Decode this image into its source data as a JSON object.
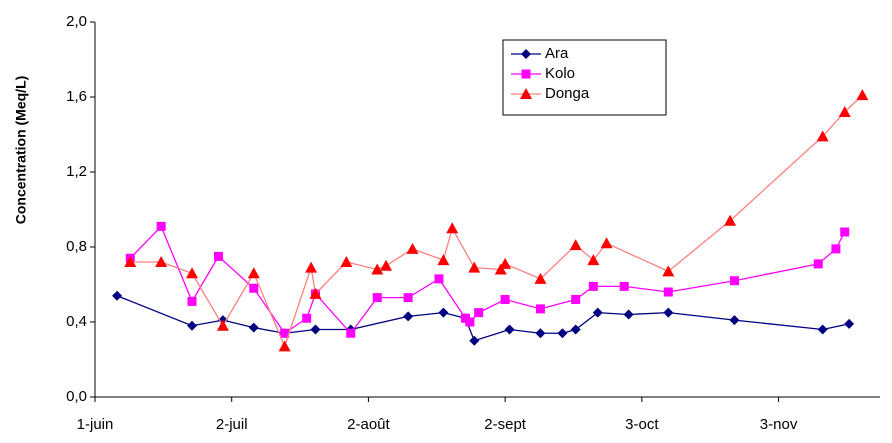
{
  "chart_data": {
    "type": "line",
    "y_label": "Concentration (Meq/L)",
    "xlim": [
      0,
      178
    ],
    "xticks": [
      {
        "value": 0,
        "label": "1-juin"
      },
      {
        "value": 31,
        "label": "2-juil"
      },
      {
        "value": 62,
        "label": "2-août"
      },
      {
        "value": 93,
        "label": "2-sept"
      },
      {
        "value": 124,
        "label": "3-oct"
      },
      {
        "value": 155,
        "label": "3-nov"
      }
    ],
    "ylim": [
      0,
      2
    ],
    "yticks": [
      {
        "value": 0,
        "label": "0,0"
      },
      {
        "value": 0.4,
        "label": "0,4"
      },
      {
        "value": 0.8,
        "label": "0,8"
      },
      {
        "value": 1.2,
        "label": "1,2"
      },
      {
        "value": 1.6,
        "label": "1,6"
      },
      {
        "value": 2.0,
        "label": "2,0"
      }
    ],
    "grid": false,
    "legend": "upper right",
    "series": [
      {
        "name": "Ara",
        "color": "#000080",
        "marker": "diamond",
        "x": [
          5,
          22,
          29,
          36,
          43,
          50,
          58,
          71,
          79,
          84,
          86,
          94,
          101,
          106,
          109,
          114,
          121,
          130,
          145,
          165,
          171
        ],
        "values": [
          0.54,
          0.38,
          0.41,
          0.37,
          0.34,
          0.36,
          0.36,
          0.43,
          0.45,
          0.42,
          0.3,
          0.36,
          0.34,
          0.34,
          0.36,
          0.45,
          0.44,
          0.45,
          0.41,
          0.36,
          0.39
        ]
      },
      {
        "name": "Kolo",
        "color": "#ff00ff",
        "marker": "square",
        "x": [
          8,
          15,
          22,
          28,
          36,
          43,
          48,
          50,
          58,
          64,
          71,
          78,
          84,
          85,
          87,
          93,
          101,
          109,
          113,
          120,
          130,
          145,
          164,
          168,
          170
        ],
        "values": [
          0.74,
          0.91,
          0.51,
          0.75,
          0.58,
          0.34,
          0.42,
          0.55,
          0.34,
          0.53,
          0.53,
          0.63,
          0.42,
          0.4,
          0.45,
          0.52,
          0.47,
          0.52,
          0.59,
          0.59,
          0.56,
          0.62,
          0.71,
          0.79,
          0.88
        ]
      },
      {
        "name": "Donga",
        "color": "#ff0000",
        "line_color": "#ff8080",
        "marker": "triangle",
        "x": [
          8,
          15,
          22,
          29,
          36,
          43,
          49,
          50,
          57,
          64,
          66,
          72,
          79,
          81,
          86,
          92,
          93,
          101,
          109,
          113,
          116,
          130,
          144,
          165,
          170,
          174
        ],
        "values": [
          0.72,
          0.72,
          0.66,
          0.38,
          0.66,
          0.27,
          0.69,
          0.55,
          0.72,
          0.68,
          0.7,
          0.79,
          0.73,
          0.9,
          0.69,
          0.68,
          0.71,
          0.63,
          0.81,
          0.73,
          0.82,
          0.67,
          0.94,
          1.39,
          1.52,
          1.61
        ]
      }
    ]
  }
}
